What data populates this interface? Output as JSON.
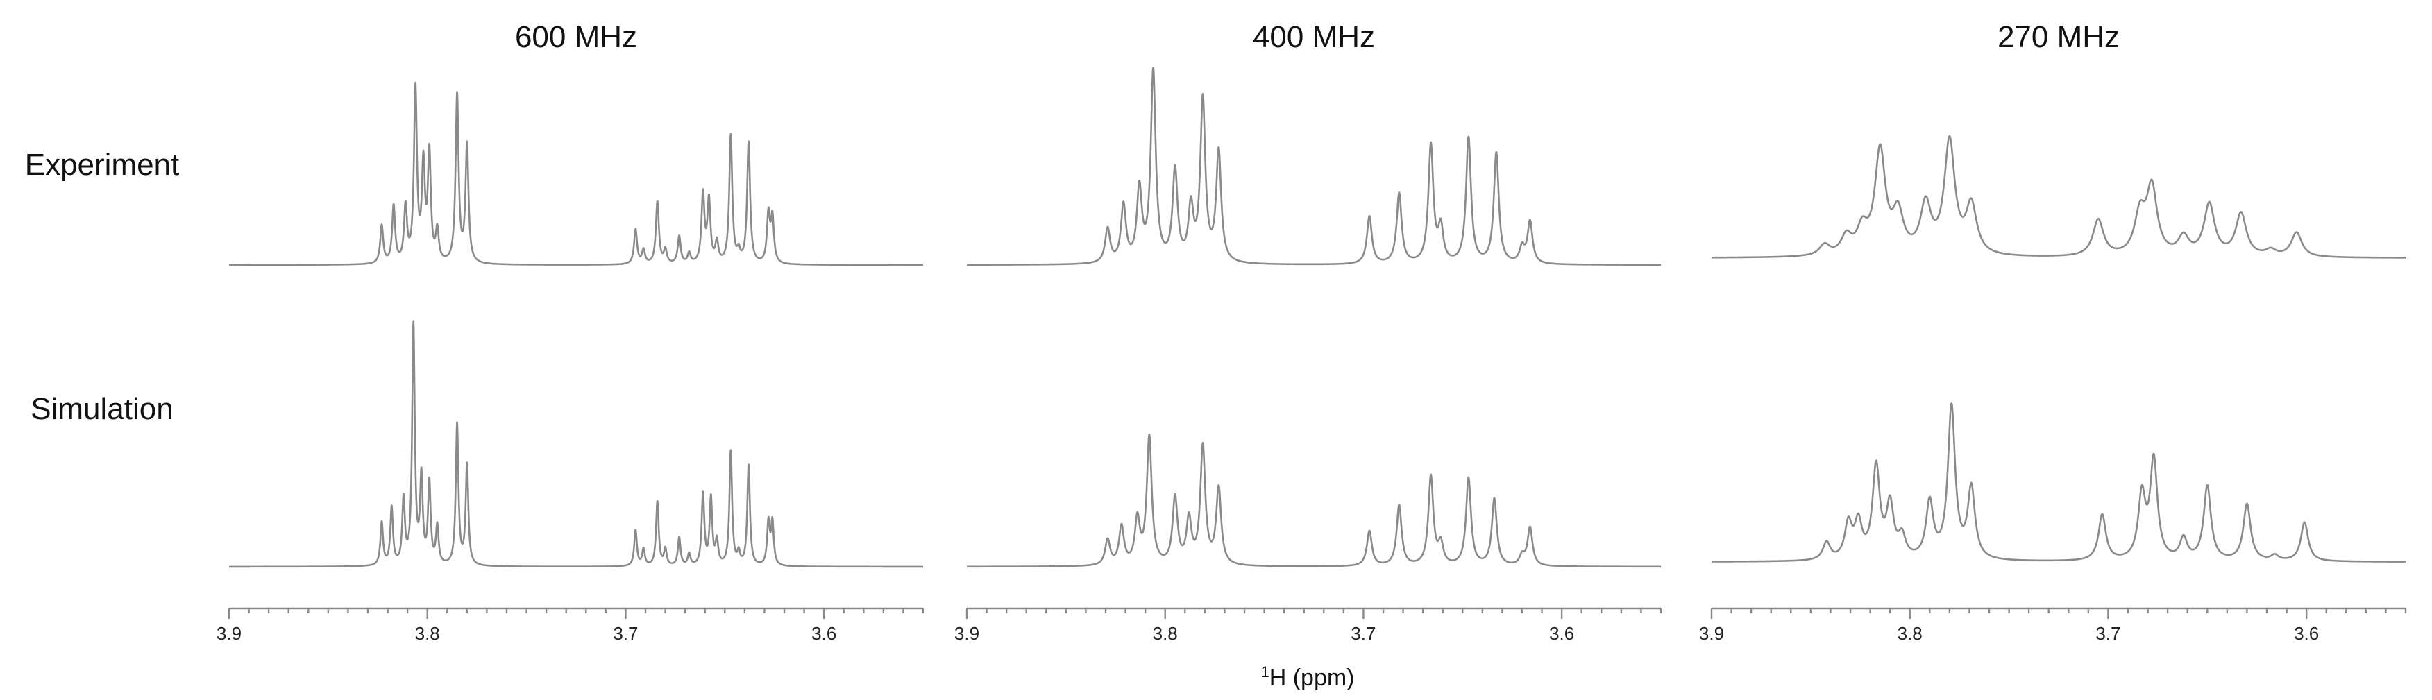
{
  "chart_data": {
    "type": "line",
    "panels": [
      {
        "title": "600 MHz",
        "xlim": [
          3.9,
          3.55
        ]
      },
      {
        "title": "400 MHz",
        "xlim": [
          3.9,
          3.55
        ]
      },
      {
        "title": "270 MHz",
        "xlim": [
          3.9,
          3.55
        ]
      }
    ],
    "rows": [
      "Experiment",
      "Simulation"
    ],
    "xticks": [
      3.9,
      3.8,
      3.7,
      3.6
    ],
    "xtick_labels": [
      "3.9",
      "3.8",
      "3.7",
      "3.6"
    ],
    "xlabel": {
      "sup": "1",
      "text": "H (ppm)"
    },
    "x_reversed": true,
    "line_color": "#8a8a8a",
    "spectra": {
      "600 MHz": {
        "Experiment": {
          "linewidth": 0.0009,
          "peaks": [
            [
              3.823,
              0.22
            ],
            [
              3.817,
              0.33
            ],
            [
              3.811,
              0.32
            ],
            [
              3.806,
              1.0
            ],
            [
              3.802,
              0.55
            ],
            [
              3.799,
              0.62
            ],
            [
              3.795,
              0.18
            ],
            [
              3.785,
              0.97
            ],
            [
              3.78,
              0.68
            ],
            [
              3.695,
              0.2
            ],
            [
              3.691,
              0.08
            ],
            [
              3.684,
              0.36
            ],
            [
              3.68,
              0.08
            ],
            [
              3.673,
              0.16
            ],
            [
              3.668,
              0.06
            ],
            [
              3.661,
              0.4
            ],
            [
              3.658,
              0.36
            ],
            [
              3.654,
              0.12
            ],
            [
              3.647,
              0.74
            ],
            [
              3.643,
              0.06
            ],
            [
              3.638,
              0.7
            ],
            [
              3.628,
              0.28
            ],
            [
              3.626,
              0.26
            ]
          ]
        },
        "Simulation": {
          "linewidth": 0.0008,
          "peaks": [
            [
              3.823,
              0.18
            ],
            [
              3.818,
              0.24
            ],
            [
              3.812,
              0.27
            ],
            [
              3.807,
              1.0
            ],
            [
              3.803,
              0.36
            ],
            [
              3.799,
              0.34
            ],
            [
              3.795,
              0.16
            ],
            [
              3.785,
              0.59
            ],
            [
              3.78,
              0.42
            ],
            [
              3.695,
              0.15
            ],
            [
              3.691,
              0.07
            ],
            [
              3.684,
              0.27
            ],
            [
              3.68,
              0.07
            ],
            [
              3.673,
              0.12
            ],
            [
              3.668,
              0.05
            ],
            [
              3.661,
              0.3
            ],
            [
              3.657,
              0.28
            ],
            [
              3.654,
              0.1
            ],
            [
              3.647,
              0.48
            ],
            [
              3.643,
              0.05
            ],
            [
              3.638,
              0.42
            ],
            [
              3.628,
              0.18
            ],
            [
              3.626,
              0.18
            ]
          ]
        }
      },
      "400 MHz": {
        "Experiment": {
          "linewidth": 0.0015,
          "peaks": [
            [
              3.829,
              0.18
            ],
            [
              3.821,
              0.3
            ],
            [
              3.813,
              0.38
            ],
            [
              3.806,
              1.0
            ],
            [
              3.795,
              0.48
            ],
            [
              3.787,
              0.28
            ],
            [
              3.781,
              0.85
            ],
            [
              3.773,
              0.58
            ],
            [
              3.697,
              0.25
            ],
            [
              3.682,
              0.37
            ],
            [
              3.666,
              0.62
            ],
            [
              3.661,
              0.18
            ],
            [
              3.647,
              0.66
            ],
            [
              3.633,
              0.58
            ],
            [
              3.62,
              0.08
            ],
            [
              3.616,
              0.22
            ]
          ]
        },
        "Simulation": {
          "linewidth": 0.0015,
          "peaks": [
            [
              3.829,
              0.16
            ],
            [
              3.822,
              0.24
            ],
            [
              3.814,
              0.28
            ],
            [
              3.808,
              0.8
            ],
            [
              3.795,
              0.42
            ],
            [
              3.788,
              0.28
            ],
            [
              3.781,
              0.74
            ],
            [
              3.773,
              0.48
            ],
            [
              3.697,
              0.22
            ],
            [
              3.682,
              0.38
            ],
            [
              3.666,
              0.56
            ],
            [
              3.661,
              0.13
            ],
            [
              3.647,
              0.55
            ],
            [
              3.634,
              0.42
            ],
            [
              3.62,
              0.06
            ],
            [
              3.616,
              0.24
            ]
          ]
        }
      },
      "270 MHz": {
        "Experiment": {
          "linewidth": 0.0032,
          "peaks": [
            [
              3.843,
              0.07
            ],
            [
              3.832,
              0.12
            ],
            [
              3.824,
              0.16
            ],
            [
              3.815,
              0.68
            ],
            [
              3.806,
              0.26
            ],
            [
              3.792,
              0.32
            ],
            [
              3.78,
              0.74
            ],
            [
              3.769,
              0.32
            ],
            [
              3.705,
              0.24
            ],
            [
              3.684,
              0.26
            ],
            [
              3.678,
              0.44
            ],
            [
              3.662,
              0.12
            ],
            [
              3.649,
              0.34
            ],
            [
              3.633,
              0.28
            ],
            [
              3.618,
              0.04
            ],
            [
              3.605,
              0.16
            ]
          ]
        },
        "Simulation": {
          "linewidth": 0.0022,
          "peaks": [
            [
              3.842,
              0.1
            ],
            [
              3.831,
              0.2
            ],
            [
              3.826,
              0.2
            ],
            [
              3.817,
              0.52
            ],
            [
              3.81,
              0.3
            ],
            [
              3.804,
              0.12
            ],
            [
              3.79,
              0.32
            ],
            [
              3.779,
              0.86
            ],
            [
              3.769,
              0.4
            ],
            [
              3.703,
              0.26
            ],
            [
              3.683,
              0.36
            ],
            [
              3.677,
              0.56
            ],
            [
              3.662,
              0.12
            ],
            [
              3.65,
              0.42
            ],
            [
              3.63,
              0.32
            ],
            [
              3.616,
              0.03
            ],
            [
              3.601,
              0.22
            ]
          ]
        }
      }
    }
  }
}
